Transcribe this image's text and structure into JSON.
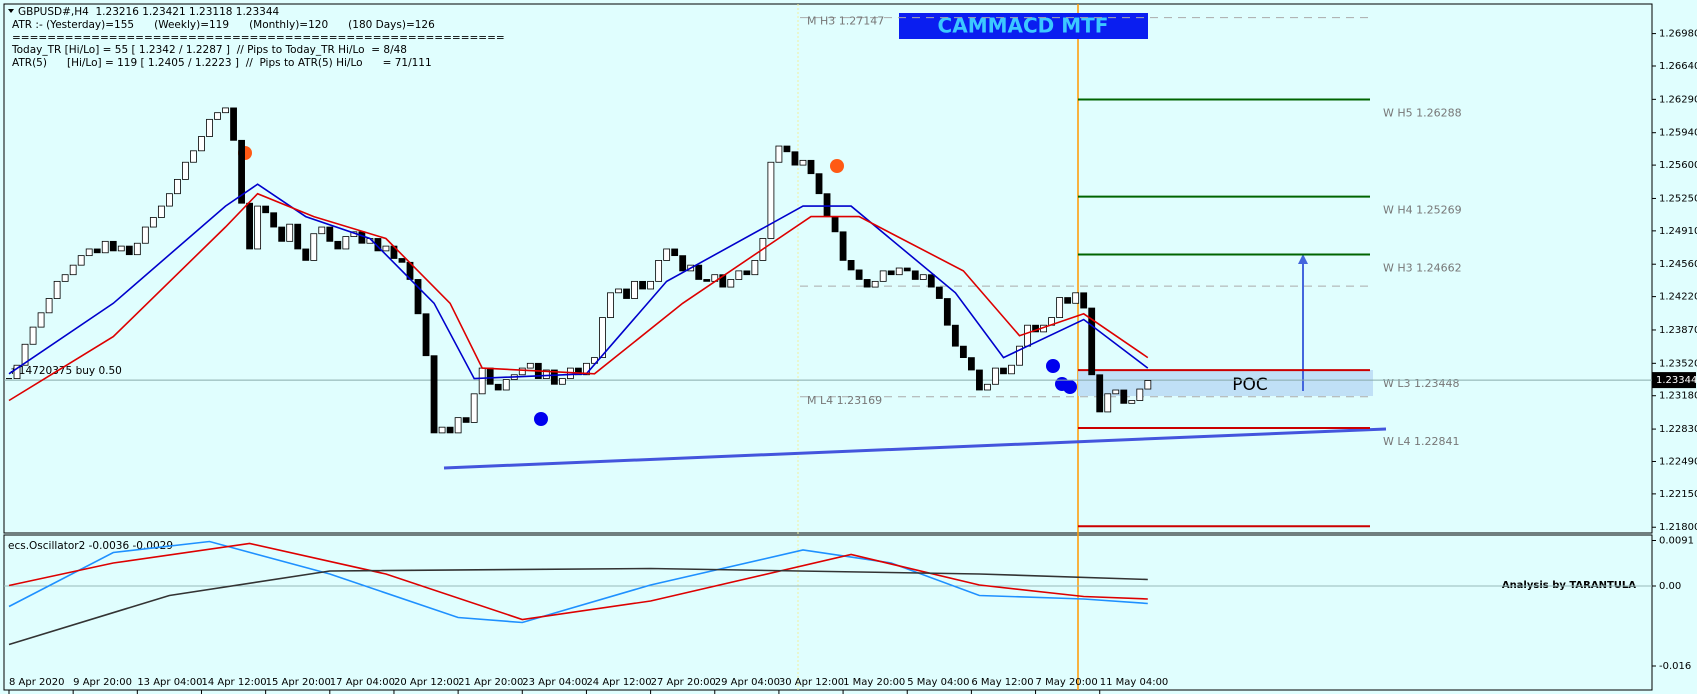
{
  "header": {
    "lines": [
      "GBPUSD#,H4  1.23216 1.23421 1.23118 1.23344",
      "ATR :- (Yesterday)=155      (Weekly)=119      (Monthly)=120      (180 Days)=126",
      "========================================================",
      "Today_TR [Hi/Lo] = 55 [ 1.2342 / 1.2287 ]  // Pips to Today_TR Hi/Lo  = 8/48",
      "ATR(5)      [Hi/Lo] = 119 [ 1.2405 / 1.2223 ]  //  Pips to ATR(5) Hi/Lo      = 71/111"
    ],
    "order": "#14720375 buy 0.50"
  },
  "chart_data": [
    {
      "type": "candlestick",
      "title": "CAMMACD MTF",
      "poc_label": "POC",
      "up_color": "#ffffff",
      "down_color": "#000000",
      "categories": [
        "8 Apr 2020",
        null,
        null,
        null,
        null,
        null,
        null,
        null,
        "9 Apr 20:00",
        null,
        null,
        null,
        null,
        null,
        null,
        null,
        "13 Apr 04:00",
        null,
        null,
        null,
        null,
        null,
        null,
        null,
        "14 Apr 12:00",
        null,
        null,
        null,
        null,
        null,
        null,
        null,
        "15 Apr 20:00",
        null,
        null,
        null,
        null,
        null,
        null,
        null,
        "17 Apr 04:00",
        null,
        null,
        null,
        null,
        null,
        null,
        null,
        "20 Apr 12:00",
        null,
        null,
        null,
        null,
        null,
        null,
        null,
        "21 Apr 20:00",
        null,
        null,
        null,
        null,
        null,
        null,
        null,
        "23 Apr 04:00",
        null,
        null,
        null,
        null,
        null,
        null,
        null,
        "24 Apr 12:00",
        null,
        null,
        null,
        null,
        null,
        null,
        null,
        "27 Apr 20:00",
        null,
        null,
        null,
        null,
        null,
        null,
        null,
        "29 Apr 04:00",
        null,
        null,
        null,
        null,
        null,
        null,
        null,
        "30 Apr 12:00",
        null,
        null,
        null,
        null,
        null,
        null,
        null,
        "1 May 20:00",
        null,
        null,
        null,
        null,
        null,
        null,
        null,
        "5 May 04:00",
        null,
        null,
        null,
        null,
        null,
        null,
        null,
        "6 May 12:00",
        null,
        null,
        null,
        null,
        null,
        null,
        null,
        "7 May 20:00",
        null,
        null,
        null,
        null,
        null,
        null,
        null,
        "11 May 04:00",
        null,
        null,
        null,
        null,
        null,
        null
      ],
      "close": [
        1.2336,
        1.235,
        1.2372,
        1.239,
        1.2405,
        1.242,
        1.2438,
        1.2445,
        1.2455,
        1.2465,
        1.2472,
        1.2468,
        1.248,
        1.247,
        1.2475,
        1.2466,
        1.2478,
        1.2495,
        1.2505,
        1.2517,
        1.253,
        1.2545,
        1.2563,
        1.2575,
        1.259,
        1.2608,
        1.2615,
        1.262,
        1.2586,
        1.252,
        1.2472,
        1.2517,
        1.251,
        1.2495,
        1.248,
        1.2498,
        1.2472,
        1.246,
        1.2488,
        1.2495,
        1.248,
        1.2472,
        1.2485,
        1.249,
        1.2478,
        1.2483,
        1.247,
        1.2475,
        1.2462,
        1.2458,
        1.244,
        1.2404,
        1.236,
        1.2279,
        1.2285,
        1.2279,
        1.2295,
        1.229,
        1.232,
        1.2347,
        1.233,
        1.2324,
        1.2335,
        1.234,
        1.2347,
        1.2352,
        1.2336,
        1.2345,
        1.233,
        1.2336,
        1.2347,
        1.234,
        1.2352,
        1.2358,
        1.24,
        1.2426,
        1.243,
        1.242,
        1.2438,
        1.243,
        1.2438,
        1.246,
        1.2472,
        1.2465,
        1.2449,
        1.2455,
        1.244,
        1.2438,
        1.2445,
        1.2432,
        1.244,
        1.2449,
        1.2445,
        1.246,
        1.2483,
        1.2563,
        1.258,
        1.2574,
        1.256,
        1.2565,
        1.2551,
        1.253,
        1.2506,
        1.249,
        1.246,
        1.245,
        1.244,
        1.2432,
        1.2438,
        1.2449,
        1.2445,
        1.2452,
        1.2449,
        1.244,
        1.2445,
        1.2432,
        1.242,
        1.2392,
        1.237,
        1.2358,
        1.2345,
        1.2324,
        1.233,
        1.2347,
        1.2341,
        1.235,
        1.237,
        1.2392,
        1.2385,
        1.2392,
        1.24,
        1.2421,
        1.2415,
        1.2426,
        1.241,
        1.234,
        1.2301,
        1.232,
        1.2324,
        1.231,
        1.2313,
        1.2325,
        1.2334
      ],
      "lines": [
        {
          "color": "#0000cc",
          "x": [
            0,
            13,
            27,
            31,
            37,
            45,
            53,
            58,
            72,
            82,
            99,
            105,
            118,
            124,
            134,
            142
          ],
          "values": [
            1.2341,
            1.2415,
            1.2517,
            1.254,
            1.2506,
            1.2483,
            1.2415,
            1.2336,
            1.2341,
            1.2438,
            1.2517,
            1.2517,
            1.2426,
            1.2358,
            1.2398,
            1.2347
          ]
        },
        {
          "color": "#dd0000",
          "x": [
            0,
            13,
            27,
            31,
            38,
            47,
            55,
            59,
            73,
            84,
            100,
            106,
            119,
            126,
            134,
            142
          ],
          "values": [
            1.2313,
            1.238,
            1.2495,
            1.253,
            1.2506,
            1.2483,
            1.2415,
            1.2347,
            1.2341,
            1.2415,
            1.2506,
            1.2506,
            1.2449,
            1.2381,
            1.2404,
            1.2358
          ]
        }
      ],
      "levels": [
        {
          "label": "M H3 1.27147",
          "value": 1.27147,
          "color": "#aaaaaa",
          "style": "dashed"
        },
        {
          "label": "W H5 1.26288",
          "value": 1.26288,
          "color": "#006400",
          "style": "solid"
        },
        {
          "label": "W H4 1.25269",
          "value": 1.25269,
          "color": "#006400",
          "style": "solid"
        },
        {
          "label": "W H3 1.24662",
          "value": 1.24662,
          "color": "#006400",
          "style": "solid"
        },
        {
          "value": 1.2433,
          "color": "#aaaaaa",
          "style": "dashed"
        },
        {
          "label": "W L3 1.23448",
          "value": 1.23448,
          "color": "#cc0000",
          "style": "solid"
        },
        {
          "label": "M L4 1.23169",
          "value": 1.23169,
          "color": "#aaaaaa",
          "style": "dashed"
        },
        {
          "label": "W L4 1.22841",
          "value": 1.22841,
          "color": "#cc0000",
          "style": "solid"
        },
        {
          "value": 1.2181,
          "color": "#cc0000",
          "style": "solid"
        }
      ],
      "current_price": {
        "value": 1.23344,
        "label": "1.23344"
      },
      "ylim": [
        1.2175,
        1.2728
      ],
      "yticks": [
        {
          "value": 1.2698,
          "label": "1.26980"
        },
        {
          "value": 1.2664,
          "label": "1.26640"
        },
        {
          "value": 1.2629,
          "label": "1.26290"
        },
        {
          "value": 1.2594,
          "label": "1.25940"
        },
        {
          "value": 1.256,
          "label": "1.25600"
        },
        {
          "value": 1.2525,
          "label": "1.25250"
        },
        {
          "value": 1.2491,
          "label": "1.24910"
        },
        {
          "value": 1.2456,
          "label": "1.24560"
        },
        {
          "value": 1.2422,
          "label": "1.24220"
        },
        {
          "value": 1.2387,
          "label": "1.23870"
        },
        {
          "value": 1.2352,
          "label": "1.23520"
        },
        {
          "value": 1.2318,
          "label": "1.23180"
        },
        {
          "value": 1.2283,
          "label": "1.22830"
        },
        {
          "value": 1.2249,
          "label": "1.22490"
        },
        {
          "value": 1.2215,
          "label": "1.22150"
        },
        {
          "value": 1.218,
          "label": "1.21800"
        }
      ]
    },
    {
      "type": "line",
      "title": "ecs.Oscillator2 -0.0036 -0.0029",
      "annotation": "Analysis by TARANTULA",
      "lines": [
        {
          "color": "#1e90ff",
          "x": [
            0,
            13,
            25,
            40,
            56,
            64,
            80,
            99,
            110,
            121,
            134,
            142
          ],
          "values": [
            -0.0041,
            0.0067,
            0.0089,
            0.0024,
            -0.0063,
            -0.0073,
            0.0002,
            0.0072,
            0.0046,
            -0.0019,
            -0.0026,
            -0.0035
          ]
        },
        {
          "color": "#dd0000",
          "x": [
            0,
            13,
            30,
            47,
            64,
            80,
            105,
            121,
            134,
            142
          ],
          "values": [
            0.0001,
            0.0046,
            0.0085,
            0.0024,
            -0.0067,
            -0.003,
            0.0063,
            0.0002,
            -0.0021,
            -0.0026
          ]
        },
        {
          "color": "#333333",
          "x": [
            0,
            20,
            40,
            80,
            121,
            142
          ],
          "values": [
            -0.0117,
            -0.0019,
            0.003,
            0.0035,
            0.0024,
            0.0013
          ]
        }
      ],
      "ylim": [
        -0.0208,
        0.01
      ],
      "yticks": [
        0.0091,
        {
          "value": 0,
          "label": "0.00"
        },
        -0.016
      ]
    }
  ]
}
